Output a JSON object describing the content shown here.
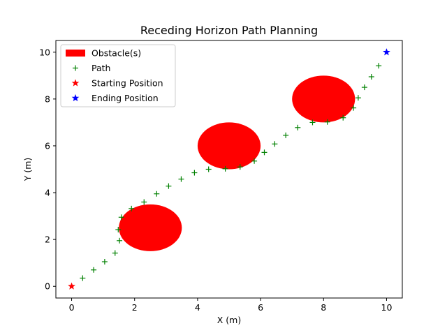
{
  "chart_data": {
    "type": "scatter",
    "title": "Receding Horizon Path Planning",
    "xlabel": "X (m)",
    "ylabel": "Y (m)",
    "xlim": [
      -0.5,
      10.5
    ],
    "ylim": [
      -0.5,
      10.5
    ],
    "xticks": [
      0,
      2,
      4,
      6,
      8,
      10
    ],
    "yticks": [
      0,
      2,
      4,
      6,
      8,
      10
    ],
    "grid": false,
    "legend_position": "upper-left",
    "legend": [
      {
        "label": "Obstacle(s)",
        "marker": "patch",
        "color": "#ff0000"
      },
      {
        "label": "Path",
        "marker": "plus",
        "color": "#008000"
      },
      {
        "label": "Starting Position",
        "marker": "star",
        "color": "#ff0000"
      },
      {
        "label": "Ending Position",
        "marker": "star",
        "color": "#0000ff"
      }
    ],
    "obstacles": [
      {
        "cx": 2.5,
        "cy": 2.5,
        "r": 1.0
      },
      {
        "cx": 5.0,
        "cy": 6.0,
        "r": 1.0
      },
      {
        "cx": 8.0,
        "cy": 8.0,
        "r": 1.0
      }
    ],
    "path": [
      {
        "x": 0.35,
        "y": 0.35
      },
      {
        "x": 0.7,
        "y": 0.7
      },
      {
        "x": 1.05,
        "y": 1.05
      },
      {
        "x": 1.38,
        "y": 1.42
      },
      {
        "x": 1.52,
        "y": 1.95
      },
      {
        "x": 1.48,
        "y": 2.42
      },
      {
        "x": 1.58,
        "y": 2.95
      },
      {
        "x": 1.9,
        "y": 3.32
      },
      {
        "x": 2.3,
        "y": 3.6
      },
      {
        "x": 2.7,
        "y": 3.95
      },
      {
        "x": 3.08,
        "y": 4.28
      },
      {
        "x": 3.48,
        "y": 4.58
      },
      {
        "x": 3.9,
        "y": 4.85
      },
      {
        "x": 4.35,
        "y": 5.0
      },
      {
        "x": 4.88,
        "y": 5.02
      },
      {
        "x": 5.35,
        "y": 5.1
      },
      {
        "x": 5.8,
        "y": 5.35
      },
      {
        "x": 6.12,
        "y": 5.72
      },
      {
        "x": 6.45,
        "y": 6.08
      },
      {
        "x": 6.8,
        "y": 6.45
      },
      {
        "x": 7.18,
        "y": 6.78
      },
      {
        "x": 7.65,
        "y": 7.0
      },
      {
        "x": 8.12,
        "y": 7.02
      },
      {
        "x": 8.62,
        "y": 7.2
      },
      {
        "x": 8.95,
        "y": 7.62
      },
      {
        "x": 9.1,
        "y": 8.05
      },
      {
        "x": 9.3,
        "y": 8.5
      },
      {
        "x": 9.52,
        "y": 8.95
      },
      {
        "x": 9.75,
        "y": 9.42
      }
    ],
    "start": {
      "x": 0,
      "y": 0
    },
    "end": {
      "x": 10,
      "y": 10
    }
  }
}
